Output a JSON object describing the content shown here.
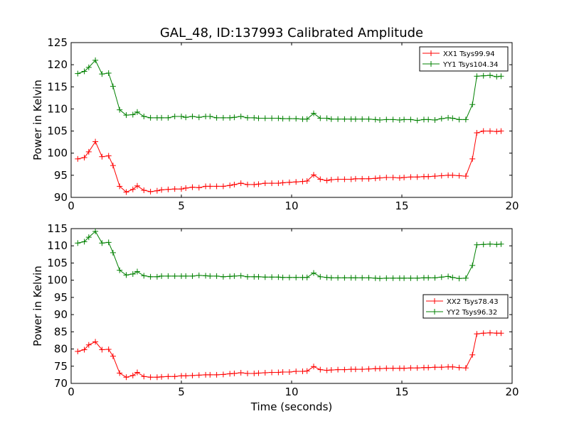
{
  "title": "GAL_48, ID:137993 Calibrated Amplitude",
  "xlabel": "Time (seconds)",
  "chart_data": [
    {
      "type": "line",
      "ylabel": "Power in Kelvin",
      "xlim": [
        0,
        20
      ],
      "ylim": [
        90,
        125
      ],
      "xticks": [
        0,
        5,
        10,
        15,
        20
      ],
      "yticks": [
        90,
        95,
        100,
        105,
        110,
        115,
        120,
        125
      ],
      "grid": false,
      "legend": "top-right",
      "series": [
        {
          "name": "XX1 Tsys99.94",
          "color": "#ff0000",
          "x": [
            0.3,
            0.6,
            0.8,
            1.1,
            1.4,
            1.7,
            1.9,
            2.2,
            2.5,
            2.8,
            3.0,
            3.3,
            3.6,
            3.9,
            4.1,
            4.4,
            4.7,
            5.0,
            5.2,
            5.5,
            5.8,
            6.1,
            6.3,
            6.6,
            6.9,
            7.2,
            7.4,
            7.7,
            8.0,
            8.3,
            8.5,
            8.8,
            9.1,
            9.4,
            9.6,
            9.9,
            10.2,
            10.5,
            10.7,
            11.0,
            11.3,
            11.6,
            11.8,
            12.1,
            12.4,
            12.7,
            12.9,
            13.2,
            13.5,
            13.8,
            14.0,
            14.3,
            14.6,
            14.9,
            15.1,
            15.4,
            15.7,
            16.0,
            16.2,
            16.5,
            16.8,
            17.1,
            17.3,
            17.6,
            17.9,
            18.2,
            18.4,
            18.7,
            19.0,
            19.3,
            19.5
          ],
          "y": [
            98.7,
            99.0,
            100.3,
            102.6,
            99.2,
            99.4,
            97.2,
            92.5,
            91.2,
            91.8,
            92.6,
            91.6,
            91.3,
            91.5,
            91.7,
            91.8,
            91.9,
            91.9,
            92.1,
            92.3,
            92.2,
            92.5,
            92.5,
            92.5,
            92.5,
            92.7,
            92.9,
            93.2,
            92.9,
            92.9,
            93.0,
            93.2,
            93.2,
            93.2,
            93.3,
            93.4,
            93.5,
            93.6,
            93.7,
            95.1,
            94.1,
            93.8,
            94.0,
            94.1,
            94.1,
            94.1,
            94.2,
            94.2,
            94.2,
            94.3,
            94.4,
            94.5,
            94.5,
            94.4,
            94.5,
            94.6,
            94.6,
            94.7,
            94.7,
            94.8,
            94.9,
            95.0,
            95.0,
            94.9,
            94.8,
            98.7,
            104.6,
            105.0,
            105.0,
            104.9,
            105.0
          ]
        },
        {
          "name": "YY1 Tsys104.34",
          "color": "#008000",
          "x": [
            0.3,
            0.6,
            0.8,
            1.1,
            1.4,
            1.7,
            1.9,
            2.2,
            2.5,
            2.8,
            3.0,
            3.3,
            3.6,
            3.9,
            4.1,
            4.4,
            4.7,
            5.0,
            5.2,
            5.5,
            5.8,
            6.1,
            6.3,
            6.6,
            6.9,
            7.2,
            7.4,
            7.7,
            8.0,
            8.3,
            8.5,
            8.8,
            9.1,
            9.4,
            9.6,
            9.9,
            10.2,
            10.5,
            10.7,
            11.0,
            11.3,
            11.6,
            11.8,
            12.1,
            12.4,
            12.7,
            12.9,
            13.2,
            13.5,
            13.8,
            14.0,
            14.3,
            14.6,
            14.9,
            15.1,
            15.4,
            15.7,
            16.0,
            16.2,
            16.5,
            16.8,
            17.1,
            17.3,
            17.6,
            17.9,
            18.2,
            18.4,
            18.7,
            19.0,
            19.3,
            19.5
          ],
          "y": [
            118.0,
            118.5,
            119.4,
            121.0,
            117.9,
            118.1,
            115.1,
            109.8,
            108.6,
            108.7,
            109.3,
            108.3,
            108.0,
            108.0,
            108.0,
            108.0,
            108.3,
            108.3,
            108.1,
            108.3,
            108.1,
            108.3,
            108.3,
            108.0,
            108.0,
            108.0,
            108.1,
            108.3,
            108.0,
            108.0,
            107.9,
            107.9,
            107.9,
            107.9,
            107.8,
            107.8,
            107.8,
            107.7,
            107.7,
            109.0,
            107.9,
            107.9,
            107.7,
            107.7,
            107.7,
            107.7,
            107.7,
            107.7,
            107.7,
            107.6,
            107.5,
            107.6,
            107.6,
            107.5,
            107.6,
            107.6,
            107.4,
            107.6,
            107.6,
            107.5,
            107.8,
            108.0,
            107.9,
            107.6,
            107.6,
            111.0,
            117.4,
            117.5,
            117.6,
            117.3,
            117.4
          ]
        }
      ]
    },
    {
      "type": "line",
      "ylabel": "Power in Kelvin",
      "xlabel": "Time (seconds)",
      "xlim": [
        0,
        20
      ],
      "ylim": [
        70,
        115
      ],
      "xticks": [
        0,
        5,
        10,
        15,
        20
      ],
      "yticks": [
        70,
        75,
        80,
        85,
        90,
        95,
        100,
        105,
        110,
        115
      ],
      "grid": false,
      "legend": "center-right",
      "series": [
        {
          "name": "XX2 Tsys78.43",
          "color": "#ff0000",
          "x": [
            0.3,
            0.6,
            0.8,
            1.1,
            1.4,
            1.7,
            1.9,
            2.2,
            2.5,
            2.8,
            3.0,
            3.3,
            3.6,
            3.9,
            4.1,
            4.4,
            4.7,
            5.0,
            5.2,
            5.5,
            5.8,
            6.1,
            6.3,
            6.6,
            6.9,
            7.2,
            7.4,
            7.7,
            8.0,
            8.3,
            8.5,
            8.8,
            9.1,
            9.4,
            9.6,
            9.9,
            10.2,
            10.5,
            10.7,
            11.0,
            11.3,
            11.6,
            11.8,
            12.1,
            12.4,
            12.7,
            12.9,
            13.2,
            13.5,
            13.8,
            14.0,
            14.3,
            14.6,
            14.9,
            15.1,
            15.4,
            15.7,
            16.0,
            16.2,
            16.5,
            16.8,
            17.1,
            17.3,
            17.6,
            17.9,
            18.2,
            18.4,
            18.7,
            19.0,
            19.3,
            19.5
          ],
          "y": [
            79.3,
            79.8,
            81.2,
            82.1,
            79.8,
            79.9,
            77.9,
            73.0,
            71.8,
            72.3,
            73.2,
            72.0,
            71.8,
            71.8,
            71.9,
            72.0,
            72.0,
            72.2,
            72.2,
            72.3,
            72.4,
            72.5,
            72.5,
            72.5,
            72.6,
            72.8,
            72.9,
            73.1,
            72.9,
            72.9,
            73.0,
            73.1,
            73.2,
            73.2,
            73.3,
            73.3,
            73.5,
            73.5,
            73.6,
            74.9,
            74.0,
            73.8,
            73.9,
            74.0,
            74.0,
            74.1,
            74.1,
            74.1,
            74.2,
            74.3,
            74.3,
            74.4,
            74.4,
            74.4,
            74.4,
            74.5,
            74.5,
            74.6,
            74.6,
            74.7,
            74.7,
            74.8,
            74.8,
            74.6,
            74.5,
            78.3,
            84.4,
            84.6,
            84.7,
            84.6,
            84.6
          ]
        },
        {
          "name": "YY2 Tsys96.32",
          "color": "#008000",
          "x": [
            0.3,
            0.6,
            0.8,
            1.1,
            1.4,
            1.7,
            1.9,
            2.2,
            2.5,
            2.8,
            3.0,
            3.3,
            3.6,
            3.9,
            4.1,
            4.4,
            4.7,
            5.0,
            5.2,
            5.5,
            5.8,
            6.1,
            6.3,
            6.6,
            6.9,
            7.2,
            7.4,
            7.7,
            8.0,
            8.3,
            8.5,
            8.8,
            9.1,
            9.4,
            9.6,
            9.9,
            10.2,
            10.5,
            10.7,
            11.0,
            11.3,
            11.6,
            11.8,
            12.1,
            12.4,
            12.7,
            12.9,
            13.2,
            13.5,
            13.8,
            14.0,
            14.3,
            14.6,
            14.9,
            15.1,
            15.4,
            15.7,
            16.0,
            16.2,
            16.5,
            16.8,
            17.1,
            17.3,
            17.6,
            17.9,
            18.2,
            18.4,
            18.7,
            19.0,
            19.3,
            19.5
          ],
          "y": [
            110.8,
            111.2,
            112.5,
            114.2,
            110.8,
            111.0,
            108.0,
            102.9,
            101.5,
            101.8,
            102.5,
            101.3,
            101.0,
            101.0,
            101.2,
            101.2,
            101.2,
            101.2,
            101.2,
            101.2,
            101.4,
            101.3,
            101.2,
            101.2,
            101.0,
            101.1,
            101.2,
            101.3,
            101.0,
            101.0,
            101.0,
            100.9,
            100.9,
            100.9,
            100.8,
            100.8,
            100.8,
            100.8,
            100.8,
            102.1,
            101.0,
            100.8,
            100.7,
            100.7,
            100.7,
            100.7,
            100.7,
            100.7,
            100.7,
            100.6,
            100.5,
            100.6,
            100.6,
            100.6,
            100.6,
            100.6,
            100.6,
            100.7,
            100.7,
            100.7,
            100.9,
            101.1,
            100.8,
            100.5,
            100.6,
            104.3,
            110.3,
            110.4,
            110.5,
            110.4,
            110.5
          ]
        }
      ]
    }
  ]
}
